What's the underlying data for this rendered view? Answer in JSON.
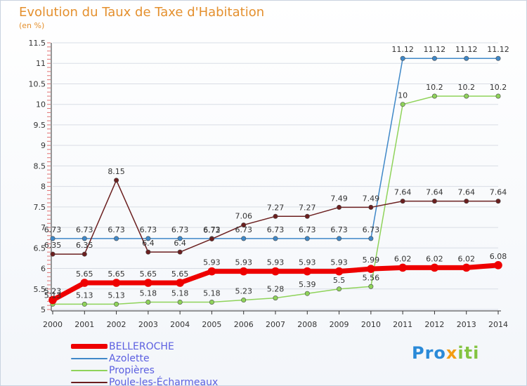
{
  "header": {
    "title": "Evolution du Taux de Taxe d'Habitation",
    "unit": "(en %)"
  },
  "logo": {
    "p1": "Pro",
    "p2": "x",
    "p3": "iti"
  },
  "colors": {
    "title": "#e4902e",
    "legend_text": "#5b5fe0",
    "axis": "#333333",
    "grid": "#d9dde5"
  },
  "chart_data": {
    "type": "line",
    "x": [
      "2000",
      "2001",
      "2002",
      "2003",
      "2004",
      "2005",
      "2006",
      "2007",
      "2008",
      "2009",
      "2010",
      "2011",
      "2012",
      "2013",
      "2014"
    ],
    "ylim": [
      5,
      11.5
    ],
    "yticks": [
      "5",
      "5.5",
      "6",
      "6.5",
      "7",
      "7.5",
      "8",
      "8.5",
      "9",
      "9.5",
      "10",
      "10.5",
      "11",
      "11.5"
    ],
    "grid": true,
    "legend_position": "bottom-left",
    "series": [
      {
        "name": "BELLEROCHE",
        "color": "#ee0000",
        "marker": "#ee0000",
        "width": 7,
        "values": [
          5.23,
          5.65,
          5.65,
          5.65,
          5.65,
          5.93,
          5.93,
          5.93,
          5.93,
          5.93,
          5.99,
          6.02,
          6.02,
          6.02,
          6.08
        ],
        "labels": [
          "5.23",
          "5.65",
          "5.65",
          "5.65",
          "5.65",
          "5.93",
          "5.93",
          "5.93",
          "5.93",
          "5.93",
          "5.99",
          "6.02",
          "6.02",
          "6.02",
          "6.08"
        ]
      },
      {
        "name": "Azolette",
        "color": "#3f88c8",
        "marker": "#3f88c8",
        "width": 1.5,
        "values": [
          6.73,
          6.73,
          6.73,
          6.73,
          6.73,
          6.73,
          6.73,
          6.73,
          6.73,
          6.73,
          6.73,
          11.12,
          11.12,
          11.12,
          11.12
        ],
        "labels": [
          "6.73",
          "6.73",
          "6.73",
          "6.73",
          "6.73",
          "6.73",
          "6.73",
          "6.73",
          "6.73",
          "6.73",
          "6.73",
          "11.12",
          "11.12",
          "11.12",
          "11.12"
        ]
      },
      {
        "name": "Propières",
        "color": "#8fd35a",
        "marker": "#8fd35a",
        "width": 1.5,
        "values": [
          5.13,
          5.13,
          5.13,
          5.18,
          5.18,
          5.18,
          5.23,
          5.28,
          5.39,
          5.5,
          5.56,
          10,
          10.2,
          10.2,
          10.2
        ],
        "labels": [
          "5.13",
          "5.13",
          "5.13",
          "5.18",
          "5.18",
          "5.18",
          "5.23",
          "5.28",
          "5.39",
          "5.5",
          "5.56",
          "10",
          "10.2",
          "10.2",
          "10.2"
        ]
      },
      {
        "name": "Poule-les-Écharmeaux",
        "color": "#6b1f1f",
        "marker": "#6b1f1f",
        "width": 1.5,
        "values": [
          6.35,
          6.35,
          8.15,
          6.4,
          6.4,
          6.72,
          7.06,
          7.27,
          7.27,
          7.49,
          7.49,
          7.64,
          7.64,
          7.64,
          7.64
        ],
        "labels": [
          "6.35",
          "6.35",
          "8.15",
          "6.4",
          "6.4",
          "6.72",
          "7.06",
          "7.27",
          "7.27",
          "7.49",
          "7.49",
          "7.64",
          "7.64",
          "7.64",
          "7.64"
        ]
      }
    ]
  }
}
